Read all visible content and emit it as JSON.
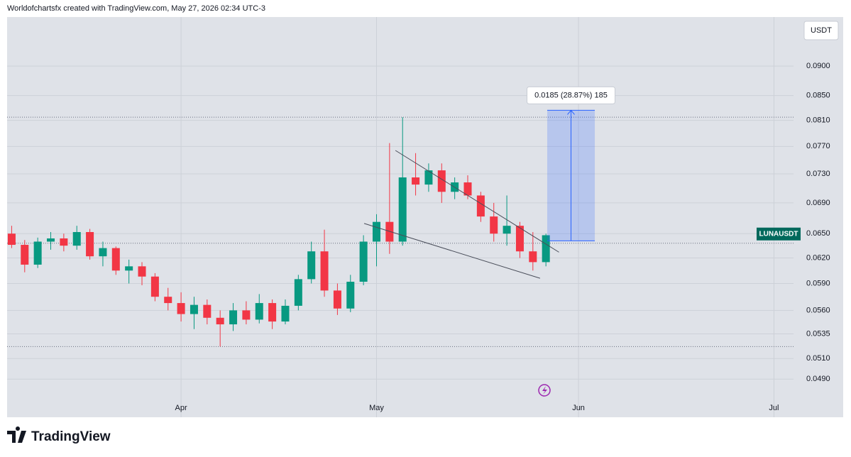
{
  "header": {
    "credit": "Worldofchartsfx created with TradingView.com, May 27, 2026 02:34 UTC-3"
  },
  "footer": {
    "logo": "TradingView"
  },
  "chart_data": {
    "type": "candlestick",
    "currency": "USDT",
    "symbol_label": "LUNAUSDT",
    "log_scale": true,
    "grid": true,
    "up_color": "#089981",
    "down_color": "#f23645",
    "ylim": [
      0.0455,
      0.099
    ],
    "yticks": [
      {
        "value": 0.049,
        "label": "0.0490"
      },
      {
        "value": 0.051,
        "label": "0.0510"
      },
      {
        "value": 0.0535,
        "label": "0.0535"
      },
      {
        "value": 0.056,
        "label": "0.0560"
      },
      {
        "value": 0.059,
        "label": "0.0590"
      },
      {
        "value": 0.062,
        "label": "0.0620"
      },
      {
        "value": 0.065,
        "label": "0.0650"
      },
      {
        "value": 0.069,
        "label": "0.0690"
      },
      {
        "value": 0.073,
        "label": "0.0730"
      },
      {
        "value": 0.077,
        "label": "0.0770"
      },
      {
        "value": 0.081,
        "label": "0.0810"
      },
      {
        "value": 0.085,
        "label": "0.0850"
      },
      {
        "value": 0.09,
        "label": "0.0900"
      }
    ],
    "xlim": [
      4.3,
      125
    ],
    "xticks": [
      {
        "value": 31,
        "label": "Apr"
      },
      {
        "value": 61,
        "label": "May"
      },
      {
        "value": 92,
        "label": "Jun"
      },
      {
        "value": 122,
        "label": "Jul"
      }
    ],
    "x": [
      5,
      7,
      9,
      11,
      13,
      15,
      17,
      19,
      21,
      23,
      25,
      27,
      29,
      31,
      33,
      35,
      37,
      39,
      41,
      43,
      45,
      47,
      49,
      51,
      53,
      55,
      57,
      59,
      61,
      63,
      65,
      67,
      69,
      71,
      73,
      75,
      77,
      79,
      81,
      83,
      85,
      87
    ],
    "open": [
      0.065,
      0.0636,
      0.0612,
      0.064,
      0.0644,
      0.0635,
      0.0652,
      0.0622,
      0.0632,
      0.0605,
      0.061,
      0.0598,
      0.0575,
      0.0568,
      0.0556,
      0.0566,
      0.0552,
      0.0545,
      0.056,
      0.055,
      0.0568,
      0.0548,
      0.0565,
      0.0595,
      0.0628,
      0.0582,
      0.0562,
      0.0592,
      0.064,
      0.0665,
      0.064,
      0.0725,
      0.0715,
      0.0735,
      0.0705,
      0.0718,
      0.07,
      0.0672,
      0.065,
      0.066,
      0.0628,
      0.0615
    ],
    "high": [
      0.066,
      0.0642,
      0.0645,
      0.0652,
      0.065,
      0.066,
      0.0656,
      0.064,
      0.0634,
      0.0618,
      0.0615,
      0.0602,
      0.0585,
      0.058,
      0.0575,
      0.0572,
      0.056,
      0.0568,
      0.057,
      0.0578,
      0.0572,
      0.0572,
      0.06,
      0.064,
      0.0655,
      0.059,
      0.06,
      0.0648,
      0.0675,
      0.0775,
      0.0815,
      0.076,
      0.0745,
      0.0745,
      0.0725,
      0.0728,
      0.0705,
      0.069,
      0.07,
      0.0665,
      0.0652,
      0.065
    ],
    "low": [
      0.0632,
      0.0603,
      0.0608,
      0.063,
      0.0628,
      0.063,
      0.0618,
      0.061,
      0.06,
      0.059,
      0.0588,
      0.057,
      0.056,
      0.0548,
      0.054,
      0.0545,
      0.0522,
      0.0538,
      0.0545,
      0.0546,
      0.054,
      0.0545,
      0.056,
      0.059,
      0.0575,
      0.0555,
      0.0558,
      0.0588,
      0.061,
      0.0625,
      0.0635,
      0.07,
      0.0705,
      0.069,
      0.0695,
      0.0695,
      0.0665,
      0.064,
      0.0635,
      0.062,
      0.0605,
      0.061
    ],
    "close": [
      0.0636,
      0.0612,
      0.064,
      0.0644,
      0.0635,
      0.0652,
      0.0622,
      0.0632,
      0.0605,
      0.061,
      0.0598,
      0.0575,
      0.0568,
      0.0556,
      0.0566,
      0.0552,
      0.0545,
      0.056,
      0.055,
      0.0568,
      0.0548,
      0.0565,
      0.0595,
      0.0628,
      0.0582,
      0.0562,
      0.0592,
      0.064,
      0.0665,
      0.064,
      0.0725,
      0.0715,
      0.0735,
      0.0705,
      0.0718,
      0.07,
      0.0672,
      0.065,
      0.066,
      0.0628,
      0.0615,
      0.0648
    ],
    "dotted_lines": [
      0.0815,
      0.0522,
      0.0638
    ],
    "trendlines": [
      {
        "x": [
          63.9,
          89.0
        ],
        "y": [
          0.0764,
          0.0627
        ]
      },
      {
        "x": [
          59.1,
          86.1
        ],
        "y": [
          0.0663,
          0.0596
        ]
      }
    ],
    "measure": {
      "x": [
        87.2,
        94.5
      ],
      "from": 0.0641,
      "to": 0.0826,
      "label": "0.0185 (28.87%) 185"
    }
  }
}
